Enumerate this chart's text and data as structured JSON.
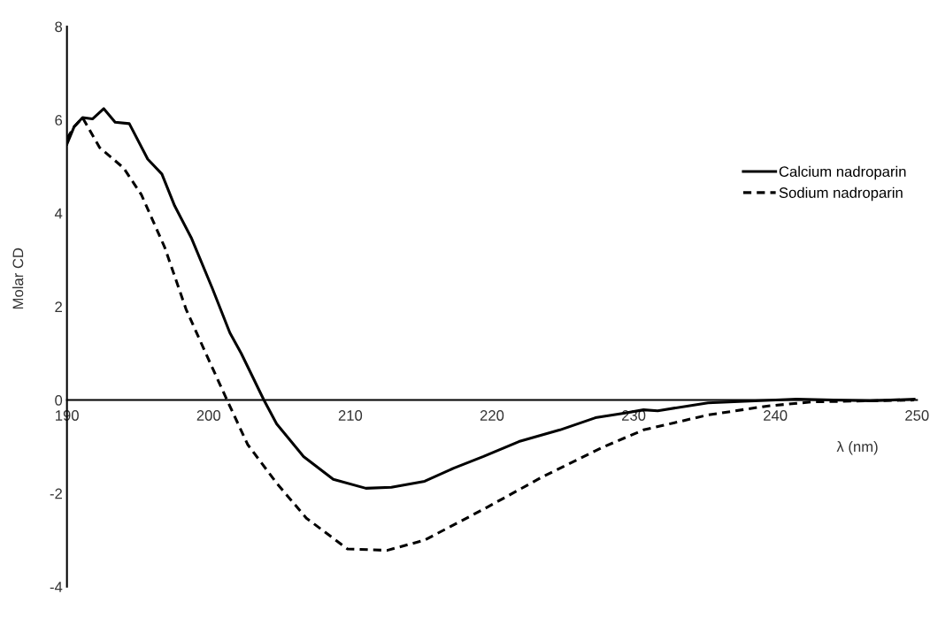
{
  "chart_data": {
    "type": "line",
    "xlabel": "λ (nm)",
    "ylabel": "Molar CD",
    "xlim": [
      190,
      250
    ],
    "ylim": [
      -4,
      8
    ],
    "xticks": [
      190,
      200,
      210,
      220,
      230,
      240,
      250
    ],
    "yticks": [
      -4,
      -2,
      0,
      2,
      4,
      6,
      8
    ],
    "grid": false,
    "legend": "right",
    "marker": "none",
    "series": [
      {
        "name": "Calcium nadroparin",
        "color": "#000000",
        "line_style": "solid",
        "x": [
          190,
          190.5,
          191.1,
          191.8,
          192.6,
          193.4,
          194.4,
          195.7,
          196.7,
          197.6,
          198.8,
          200.25,
          201.5,
          202.3,
          203.9,
          204.8,
          206.7,
          208.8,
          211.1,
          212.9,
          215.25,
          217.3,
          219.4,
          221.9,
          224.8,
          227.3,
          229.4,
          230.7,
          231.7,
          235.25,
          241.5,
          246.7,
          249.8
        ],
        "values": [
          5.48,
          5.85,
          6.05,
          6.02,
          6.24,
          5.95,
          5.92,
          5.16,
          4.84,
          4.16,
          3.46,
          2.4,
          1.44,
          1.0,
          0,
          -0.51,
          -1.21,
          -1.7,
          -1.89,
          -1.87,
          -1.74,
          -1.46,
          -1.21,
          -0.89,
          -0.64,
          -0.38,
          -0.28,
          -0.21,
          -0.23,
          -0.06,
          0.02,
          -0.02,
          0.02
        ]
      },
      {
        "name": "Sodium nadroparin",
        "color": "#000000",
        "line_style": "dashed",
        "x": [
          190,
          190.5,
          191.1,
          192.3,
          194,
          195.25,
          196.9,
          198.4,
          199.8,
          201.3,
          202.75,
          204.8,
          206.9,
          209.8,
          212.6,
          215.25,
          219.4,
          223.6,
          227.75,
          230.7,
          235.25,
          239.4,
          242.6,
          249.8
        ],
        "values": [
          5.6,
          5.85,
          6.05,
          5.41,
          4.97,
          4.4,
          3.27,
          1.95,
          1.0,
          0,
          -0.95,
          -1.78,
          -2.53,
          -3.19,
          -3.22,
          -3.0,
          -2.34,
          -1.64,
          -1.02,
          -0.64,
          -0.32,
          -0.13,
          -0.04,
          0.0
        ]
      }
    ]
  }
}
